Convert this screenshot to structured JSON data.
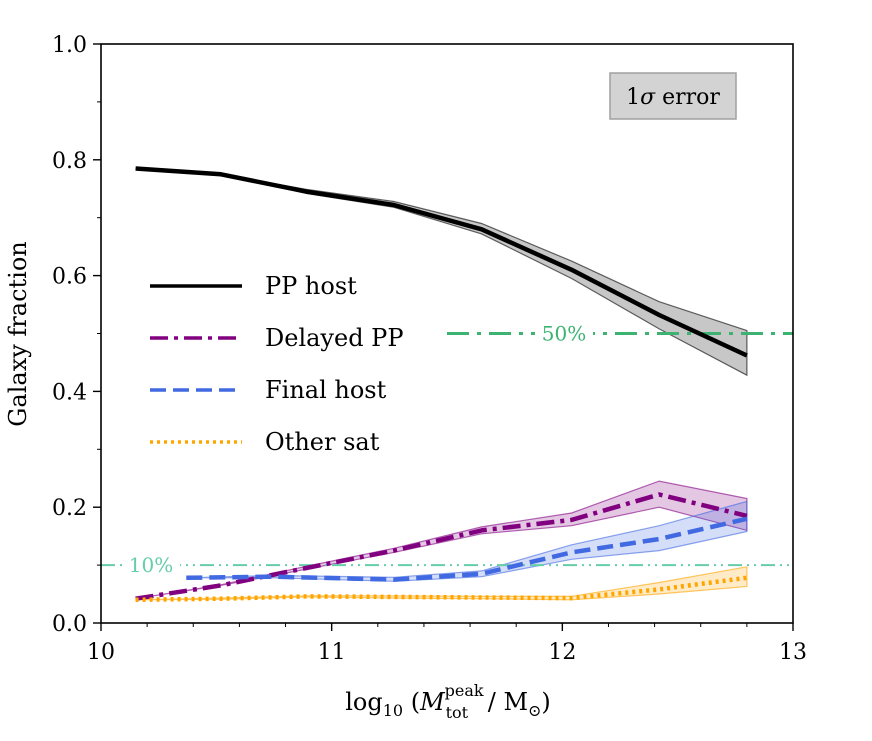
{
  "chart_data": {
    "type": "line",
    "title": "",
    "xlabel": {
      "prefix": "log",
      "prefix_sub": "10",
      "open": " (",
      "var": "M",
      "var_sup": "peak",
      "var_sub": "tot",
      "mid": " / M",
      "sun_sub": "⊙",
      "close": ")"
    },
    "ylabel": "Galaxy fraction",
    "xlim": [
      10,
      13
    ],
    "ylim": [
      0,
      1.0
    ],
    "xticks": [
      10,
      11,
      12,
      13
    ],
    "xtick_labels": [
      "10",
      "11",
      "12",
      "13"
    ],
    "yticks": [
      0.0,
      0.2,
      0.4,
      0.6,
      0.8,
      1.0
    ],
    "ytick_labels": [
      "0.0",
      "0.2",
      "0.4",
      "0.6",
      "0.8",
      "1.0"
    ],
    "series": [
      {
        "name": "PP host",
        "color": "#000000",
        "style": "solid",
        "x": [
          10.15,
          10.52,
          10.89,
          11.27,
          11.65,
          12.04,
          12.42,
          12.8
        ],
        "values": [
          0.785,
          0.775,
          0.745,
          0.722,
          0.68,
          0.61,
          0.532,
          0.462
        ],
        "err_lo": [
          0.785,
          0.775,
          0.742,
          0.718,
          0.672,
          0.595,
          0.508,
          0.428
        ],
        "err_hi": [
          0.785,
          0.775,
          0.749,
          0.728,
          0.69,
          0.625,
          0.555,
          0.505
        ]
      },
      {
        "name": "Delayed PP",
        "color": "#800080",
        "style": "dashdot",
        "x": [
          10.15,
          10.52,
          10.89,
          11.27,
          11.65,
          12.04,
          12.42,
          12.8
        ],
        "values": [
          0.042,
          0.065,
          0.095,
          0.125,
          0.16,
          0.178,
          0.222,
          0.185
        ],
        "err_lo": [
          0.042,
          0.065,
          0.093,
          0.122,
          0.154,
          0.168,
          0.2,
          0.16
        ],
        "err_hi": [
          0.042,
          0.066,
          0.098,
          0.129,
          0.166,
          0.19,
          0.245,
          0.215
        ]
      },
      {
        "name": "Final host",
        "color": "#4169e1",
        "style": "dashed",
        "x": [
          10.37,
          10.75,
          11.27,
          11.65,
          12.04,
          12.42,
          12.8
        ],
        "values": [
          0.078,
          0.08,
          0.075,
          0.085,
          0.122,
          0.145,
          0.18
        ],
        "err_lo": [
          0.078,
          0.078,
          0.072,
          0.08,
          0.11,
          0.125,
          0.158
        ],
        "err_hi": [
          0.078,
          0.082,
          0.079,
          0.09,
          0.135,
          0.168,
          0.21
        ]
      },
      {
        "name": "Other sat",
        "color": "#ffa500",
        "style": "dotted",
        "x": [
          10.15,
          10.52,
          10.89,
          11.27,
          11.65,
          12.04,
          12.42,
          12.8
        ],
        "values": [
          0.04,
          0.042,
          0.046,
          0.045,
          0.044,
          0.043,
          0.058,
          0.078
        ],
        "err_lo": [
          0.04,
          0.041,
          0.045,
          0.043,
          0.042,
          0.04,
          0.05,
          0.063
        ],
        "err_hi": [
          0.04,
          0.043,
          0.047,
          0.047,
          0.046,
          0.046,
          0.07,
          0.097
        ]
      }
    ],
    "reference_lines": [
      {
        "label": "50%",
        "y": 0.5,
        "x_start": 11.5,
        "x_end": 13,
        "color": "#3cb371",
        "style": "dashdot"
      },
      {
        "label": "10%",
        "y": 0.1,
        "x_start": 10,
        "x_end": 13,
        "color": "#66cdaa",
        "style": "dashdotdot"
      }
    ],
    "legend_position": "center-left",
    "annotation_box": {
      "text_prefix": "1",
      "text_symbol": "σ",
      "text_suffix": " error",
      "position": "top-right"
    },
    "grid": false
  }
}
